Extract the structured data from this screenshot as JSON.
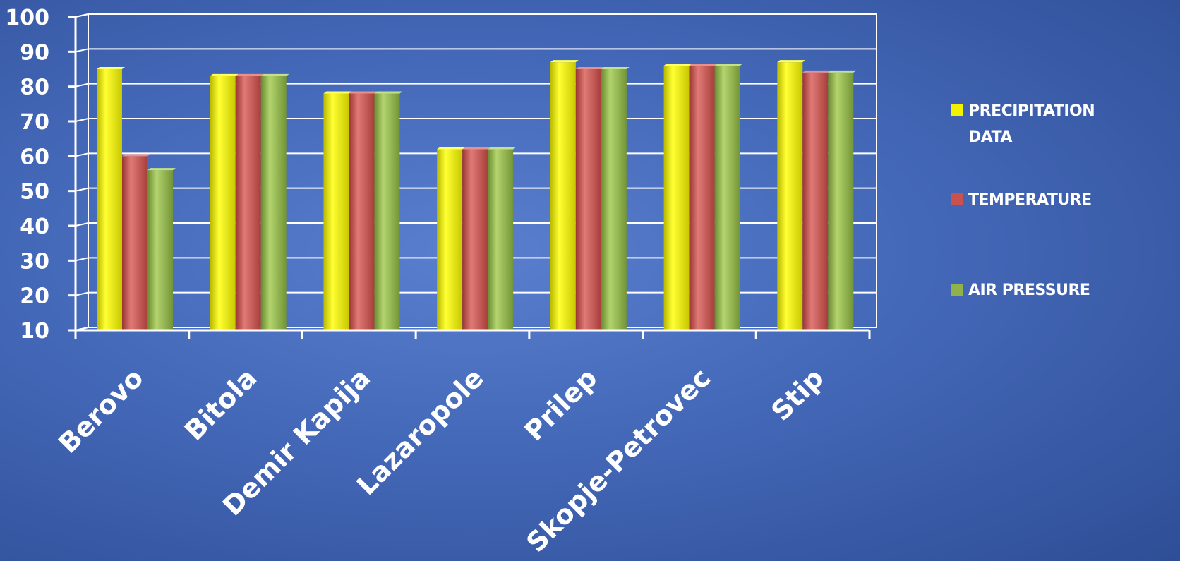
{
  "chart_data": {
    "type": "bar",
    "categories": [
      "Berovo",
      "Bitola",
      "Demir Kapija",
      "Lazaropole",
      "Prilep",
      "Skopje-Petrovec",
      "Stip"
    ],
    "series": [
      {
        "name": "PRECIPITATION DATA",
        "legend_lines": [
          "PRECIPITATION",
          "DATA"
        ],
        "color": "#f2f200",
        "values": [
          85,
          83,
          78,
          62,
          87,
          86,
          87
        ]
      },
      {
        "name": "TEMPERATURE",
        "legend_lines": [
          "TEMPERATURE"
        ],
        "color": "#c9514e",
        "values": [
          60,
          83,
          78,
          62,
          85,
          86,
          84
        ]
      },
      {
        "name": "AIR PRESSURE",
        "legend_lines": [
          "AIR PRESSURE"
        ],
        "color": "#8fb34a",
        "values": [
          56,
          83,
          78,
          62,
          85,
          86,
          84
        ]
      }
    ],
    "y_ticks": [
      "10",
      "20",
      "30",
      "40",
      "50",
      "60",
      "70",
      "80",
      "90",
      "100"
    ],
    "ylim": [
      10,
      100
    ],
    "grid": true,
    "legend_position": "right"
  }
}
